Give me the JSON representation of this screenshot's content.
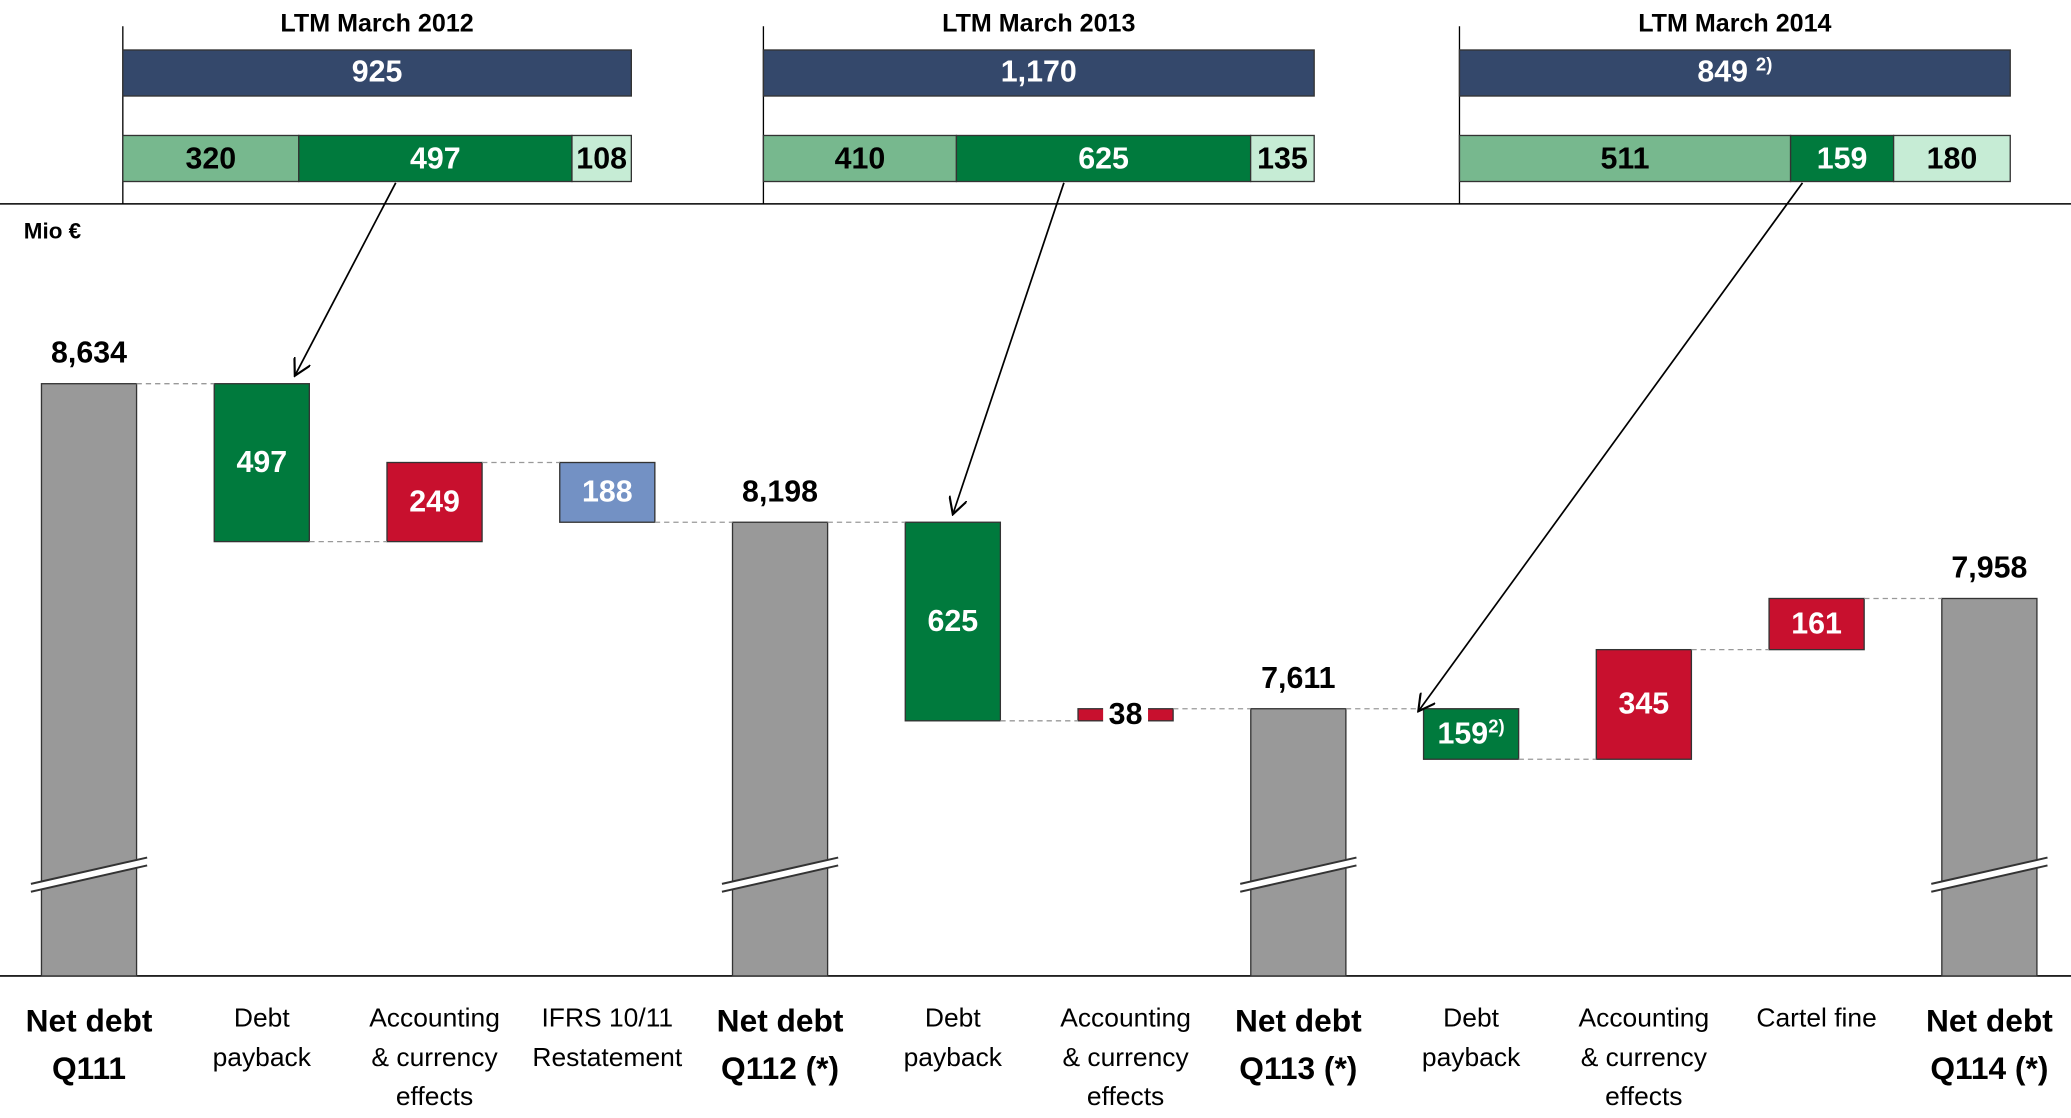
{
  "chart_data": {
    "type": "waterfall",
    "unit_label": "Mio €",
    "categories": [
      [
        "Net debt",
        "Q111"
      ],
      [
        "Debt",
        "payback"
      ],
      [
        "Accounting",
        "& currency",
        "effects"
      ],
      [
        "IFRS 10/11",
        "Restatement"
      ],
      [
        "Net debt",
        "Q112 (*)"
      ],
      [
        "Debt",
        "payback"
      ],
      [
        "Accounting",
        "& currency",
        "effects"
      ],
      [
        "Net debt",
        "Q113 (*)"
      ],
      [
        "Debt",
        "payback"
      ],
      [
        "Accounting",
        "& currency",
        "effects"
      ],
      [
        "Cartel fine"
      ],
      [
        "Net debt",
        "Q114 (*)"
      ]
    ],
    "measure": [
      "total",
      "decrease",
      "increase",
      "decrease",
      "total",
      "decrease",
      "increase",
      "total",
      "decrease",
      "increase",
      "increase",
      "total"
    ],
    "values": [
      8634,
      497,
      249,
      188,
      8198,
      625,
      38,
      7611,
      159,
      345,
      161,
      7958
    ],
    "value_labels": [
      "8,634",
      "497",
      "249",
      "188",
      "8,198",
      "625",
      "38",
      "7,611",
      "159",
      "345",
      "161",
      "7,958"
    ],
    "value_label_notes": [
      null,
      null,
      null,
      null,
      null,
      null,
      null,
      null,
      "2)",
      null,
      null,
      null
    ],
    "colors": [
      "#999999",
      "#007a3d",
      "#c8102e",
      "#7391c4",
      "#999999",
      "#007a3d",
      "#c8102e",
      "#999999",
      "#007a3d",
      "#c8102e",
      "#c8102e",
      "#999999"
    ],
    "ylim": [
      6770,
      9200
    ],
    "axis_break": true,
    "panels": [
      {
        "title": "LTM March 2012",
        "total": 925,
        "total_color": "#34486b",
        "arrow_to": 1,
        "segments": [
          {
            "value": 320,
            "color": "#77b88e"
          },
          {
            "value": 497,
            "color": "#007a3d"
          },
          {
            "value": 108,
            "color": "#c6ecd5"
          }
        ]
      },
      {
        "title": "LTM March 2013",
        "total": 1170,
        "total_label": "1,170",
        "total_color": "#34486b",
        "arrow_to": 5,
        "segments": [
          {
            "value": 410,
            "color": "#77b88e"
          },
          {
            "value": 625,
            "color": "#007a3d"
          },
          {
            "value": 135,
            "color": "#c6ecd5"
          }
        ]
      },
      {
        "title": "LTM March 2014",
        "total": 849,
        "total_note": "2)",
        "total_color": "#34486b",
        "arrow_to": 8,
        "segments": [
          {
            "value": 511,
            "color": "#77b88e"
          },
          {
            "value": 159,
            "color": "#007a3d"
          },
          {
            "value": 180,
            "color": "#c6ecd5"
          }
        ]
      }
    ]
  }
}
